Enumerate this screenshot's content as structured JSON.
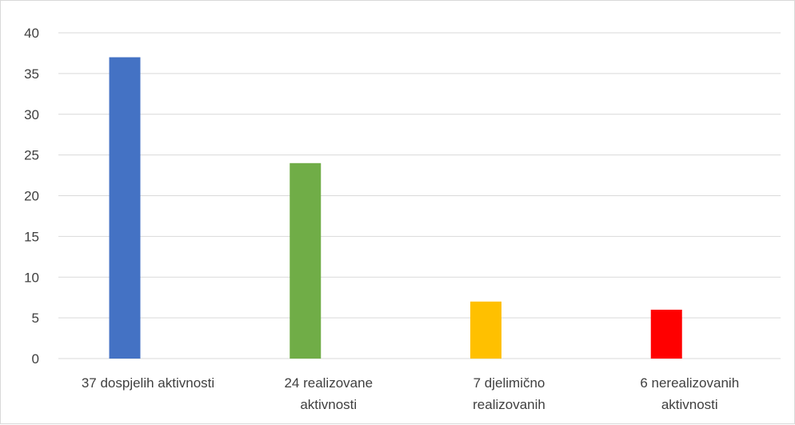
{
  "chart_data": {
    "type": "bar",
    "title": "",
    "xlabel": "",
    "ylabel": "",
    "ylim": [
      0,
      40
    ],
    "y_ticks": [
      "0",
      "5",
      "10",
      "15",
      "20",
      "25",
      "30",
      "35",
      "40"
    ],
    "grid": true,
    "legend": "none",
    "categories": [
      [
        "37 dospjelih aktivnosti"
      ],
      [
        "24 realizovane",
        "aktivnosti"
      ],
      [
        "7 djelimično",
        "realizovanih"
      ],
      [
        "6 nerealizovanih",
        "aktivnosti"
      ]
    ],
    "values": [
      37,
      24,
      7,
      6
    ],
    "colors": [
      "#4472c4",
      "#70ad47",
      "#ffc000",
      "#ff0000"
    ]
  }
}
